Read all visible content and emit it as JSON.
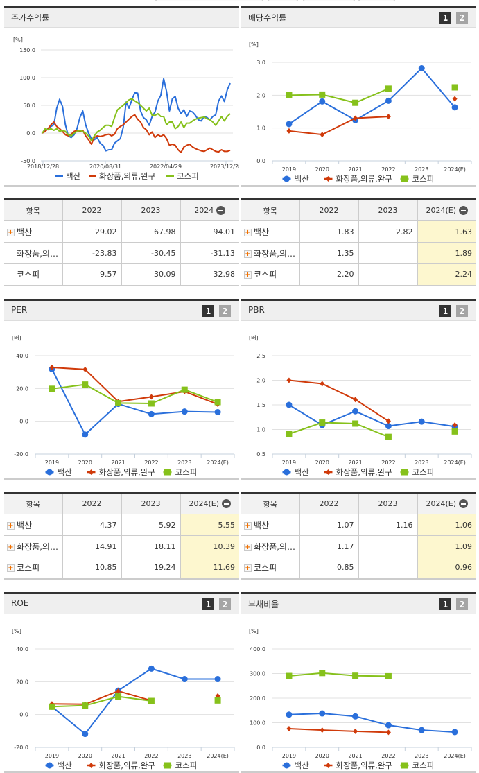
{
  "colors": {
    "baeksan": "#2a6fdb",
    "industry": "#d03a0a",
    "kospi": "#86c11b",
    "estimate_bg": "#fdf7cf"
  },
  "legend": [
    "백산",
    "화장품,의류,완구",
    "코스피"
  ],
  "panels": {
    "stock_return": {
      "title": "주가수익률",
      "unit": "[%]",
      "table": {
        "headers": [
          "항목",
          "2022",
          "2023",
          "2024"
        ],
        "rows": [
          {
            "name": "백산",
            "expand": true,
            "values": [
              "29.02",
              "67.98",
              "94.01"
            ]
          },
          {
            "name": "화장품,의…",
            "expand": false,
            "values": [
              "-23.83",
              "-30.45",
              "-31.13"
            ]
          },
          {
            "name": "코스피",
            "expand": false,
            "values": [
              "9.57",
              "30.09",
              "32.98"
            ]
          }
        ]
      }
    },
    "dividend": {
      "title": "배당수익률",
      "unit": "[%]",
      "pager": [
        "1",
        "2"
      ],
      "table": {
        "headers": [
          "항목",
          "2022",
          "2023",
          "2024(E)"
        ],
        "rows": [
          {
            "name": "백산",
            "expand": true,
            "values": [
              "1.83",
              "2.82",
              "1.63"
            ]
          },
          {
            "name": "화장품,의…",
            "expand": true,
            "values": [
              "1.35",
              "",
              "1.89"
            ]
          },
          {
            "name": "코스피",
            "expand": true,
            "values": [
              "2.20",
              "",
              "2.24"
            ]
          }
        ]
      }
    },
    "per": {
      "title": "PER",
      "unit": "[배]",
      "pager": [
        "1",
        "2"
      ],
      "table": {
        "headers": [
          "항목",
          "2022",
          "2023",
          "2024(E)"
        ],
        "rows": [
          {
            "name": "백산",
            "expand": true,
            "values": [
              "4.37",
              "5.92",
              "5.55"
            ]
          },
          {
            "name": "화장품,의…",
            "expand": true,
            "values": [
              "14.91",
              "18.11",
              "10.39"
            ]
          },
          {
            "name": "코스피",
            "expand": true,
            "values": [
              "10.85",
              "19.24",
              "11.69"
            ]
          }
        ]
      }
    },
    "pbr": {
      "title": "PBR",
      "unit": "[배]",
      "pager": [
        "1",
        "2"
      ],
      "table": {
        "headers": [
          "항목",
          "2022",
          "2023",
          "2024(E)"
        ],
        "rows": [
          {
            "name": "백산",
            "expand": true,
            "values": [
              "1.07",
              "1.16",
              "1.06"
            ]
          },
          {
            "name": "화장품,의…",
            "expand": true,
            "values": [
              "1.17",
              "",
              "1.09"
            ]
          },
          {
            "name": "코스피",
            "expand": true,
            "values": [
              "0.85",
              "",
              "0.96"
            ]
          }
        ]
      }
    },
    "roe": {
      "title": "ROE",
      "unit": "[%]",
      "pager": [
        "1",
        "2"
      ]
    },
    "debt_ratio": {
      "title": "부채비율",
      "unit": "[%]",
      "pager": [
        "1",
        "2"
      ]
    }
  },
  "chart_data": [
    {
      "id": "stock_return",
      "type": "line",
      "title": "주가수익률",
      "ylabel": "[%]",
      "ylim": [
        -50,
        150
      ],
      "yticks": [
        "150.0",
        "100.0",
        "50.0",
        "0.0",
        "-50.0"
      ],
      "xticks": [
        "2018/12/28",
        "2020/08/31",
        "2022/04/29",
        "2023/12/28"
      ],
      "grid": true,
      "legend_position": "bottom",
      "series": [
        {
          "name": "백산",
          "values": [
            0,
            5,
            8,
            12,
            15,
            45,
            61,
            48,
            15,
            -5,
            -8,
            -3,
            8,
            28,
            40,
            15,
            0,
            -10,
            -12,
            -8,
            -18,
            -22,
            -32,
            -30,
            -30,
            -18,
            -14,
            -10,
            10,
            56,
            45,
            60,
            73,
            72,
            40,
            28,
            24,
            14,
            30,
            38,
            58,
            68,
            98,
            75,
            40,
            62,
            66,
            45,
            35,
            42,
            30,
            40,
            38,
            32,
            24,
            22,
            30,
            28,
            24,
            30,
            33,
            58,
            67,
            57,
            78,
            90
          ]
        },
        {
          "name": "화장품,의류,완구",
          "values": [
            0,
            3,
            8,
            15,
            20,
            12,
            8,
            3,
            -3,
            -5,
            -2,
            3,
            5,
            3,
            5,
            -5,
            -12,
            -20,
            -8,
            -5,
            -6,
            -5,
            -3,
            -2,
            -5,
            -2,
            8,
            12,
            15,
            20,
            25,
            30,
            33,
            25,
            20,
            10,
            6,
            -3,
            2,
            -8,
            -3,
            -6,
            -3,
            -10,
            -22,
            -20,
            -22,
            -30,
            -35,
            -25,
            -22,
            -20,
            -25,
            -28,
            -30,
            -32,
            -33,
            -30,
            -27,
            -30,
            -33,
            -34,
            -30,
            -33,
            -33,
            -31
          ]
        },
        {
          "name": "코스피",
          "values": [
            0,
            8,
            6,
            8,
            5,
            8,
            3,
            5,
            3,
            -3,
            -5,
            0,
            3,
            5,
            3,
            0,
            -5,
            -14,
            -5,
            2,
            5,
            10,
            14,
            14,
            12,
            28,
            42,
            46,
            50,
            55,
            60,
            62,
            58,
            55,
            50,
            45,
            40,
            45,
            32,
            32,
            35,
            30,
            30,
            15,
            20,
            20,
            8,
            12,
            20,
            10,
            18,
            18,
            22,
            25,
            27,
            28,
            29,
            26,
            24,
            20,
            14,
            22,
            30,
            22,
            30,
            35
          ]
        }
      ]
    },
    {
      "id": "dividend",
      "type": "line",
      "title": "배당수익률",
      "ylabel": "[%]",
      "ylim": [
        0,
        3
      ],
      "yticks": [
        "3.0",
        "2.0",
        "1.0",
        "0.0"
      ],
      "categories": [
        "2019",
        "2020",
        "2021",
        "2022",
        "2023",
        "2024(E)"
      ],
      "grid": true,
      "legend_position": "bottom",
      "series": [
        {
          "name": "백산",
          "values": [
            1.12,
            1.81,
            1.24,
            1.83,
            2.82,
            1.63
          ]
        },
        {
          "name": "화장품,의류,완구",
          "values": [
            0.91,
            0.8,
            1.3,
            1.35,
            null,
            1.89
          ]
        },
        {
          "name": "코스피",
          "values": [
            2.0,
            2.02,
            1.77,
            2.2,
            null,
            2.24
          ]
        }
      ]
    },
    {
      "id": "per",
      "type": "line",
      "title": "PER",
      "ylabel": "[배]",
      "ylim": [
        -20,
        40
      ],
      "yticks": [
        "40.0",
        "20.0",
        "0.0",
        "-20.0"
      ],
      "categories": [
        "2019",
        "2020",
        "2021",
        "2022",
        "2023",
        "2024(E)"
      ],
      "grid": true,
      "legend_position": "bottom",
      "series": [
        {
          "name": "백산",
          "values": [
            31.8,
            -8.1,
            10.6,
            4.37,
            5.92,
            5.55
          ]
        },
        {
          "name": "화장품,의류,완구",
          "values": [
            32.8,
            31.6,
            12.0,
            14.91,
            18.11,
            10.39
          ]
        },
        {
          "name": "코스피",
          "values": [
            19.8,
            22.4,
            11.1,
            10.85,
            19.24,
            11.69
          ]
        }
      ]
    },
    {
      "id": "pbr",
      "type": "line",
      "title": "PBR",
      "ylabel": "[배]",
      "ylim": [
        0.5,
        2.5
      ],
      "yticks": [
        "2.5",
        "2.0",
        "1.5",
        "1.0",
        "0.5"
      ],
      "categories": [
        "2019",
        "2020",
        "2021",
        "2022",
        "2023",
        "2024(E)"
      ],
      "grid": true,
      "legend_position": "bottom",
      "series": [
        {
          "name": "백산",
          "values": [
            1.5,
            1.09,
            1.37,
            1.07,
            1.16,
            1.06
          ]
        },
        {
          "name": "화장품,의류,완구",
          "values": [
            2.0,
            1.93,
            1.61,
            1.17,
            null,
            1.09
          ]
        },
        {
          "name": "코스피",
          "values": [
            0.91,
            1.14,
            1.12,
            0.85,
            null,
            0.96
          ]
        }
      ]
    },
    {
      "id": "roe",
      "type": "line",
      "title": "ROE",
      "ylabel": "[%]",
      "ylim": [
        -20,
        40
      ],
      "yticks": [
        "40.0",
        "20.0",
        "0.0",
        "-20.0"
      ],
      "categories": [
        "2019",
        "2020",
        "2021",
        "2022",
        "2023",
        "2024(E)"
      ],
      "grid": true,
      "legend_position": "bottom",
      "series": [
        {
          "name": "백산",
          "values": [
            4.8,
            -11.8,
            14.6,
            28.0,
            21.6,
            21.6
          ]
        },
        {
          "name": "화장품,의류,완구",
          "values": [
            6.5,
            6.3,
            14.3,
            8.5,
            null,
            11.3
          ]
        },
        {
          "name": "코스피",
          "values": [
            4.8,
            5.5,
            11.0,
            8.3,
            null,
            8.6
          ]
        }
      ]
    },
    {
      "id": "debt_ratio",
      "type": "line",
      "title": "부채비율",
      "ylabel": "[%]",
      "ylim": [
        0,
        400
      ],
      "yticks": [
        "400.0",
        "300.0",
        "200.0",
        "100.0",
        "0.0"
      ],
      "categories": [
        "2019",
        "2020",
        "2021",
        "2022",
        "2023",
        "2024(E)"
      ],
      "grid": true,
      "legend_position": "bottom",
      "series": [
        {
          "name": "백산",
          "values": [
            133,
            138,
            126,
            90,
            70,
            62
          ]
        },
        {
          "name": "화장품,의류,완구",
          "values": [
            76,
            70,
            65,
            61,
            null,
            null
          ]
        },
        {
          "name": "코스피",
          "values": [
            290,
            302,
            291,
            289,
            null,
            null
          ]
        }
      ]
    }
  ]
}
